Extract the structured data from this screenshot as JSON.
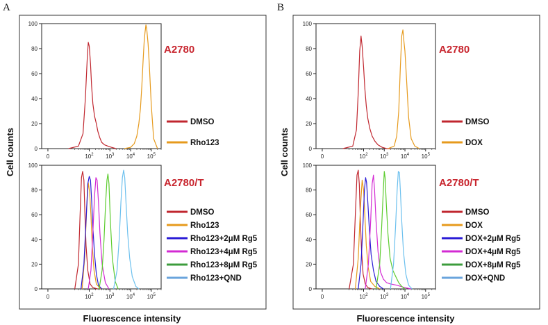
{
  "figure_panels": [
    {
      "letter": "A",
      "ylabel": "Cell counts",
      "xlabel": "Fluorescence intensity"
    },
    {
      "letter": "B",
      "ylabel": "Cell counts",
      "xlabel": "Fluorescence intensity"
    }
  ],
  "colors": {
    "DMSO": "#c0262e",
    "dye": "#e69a1c",
    "dye_2uM": "#2a1bd6",
    "dye_4uM": "#d32ad3",
    "dye_8uM": "#5ccc2e",
    "dye_QND": "#6cc0ee",
    "legend_8uM": "#3c9c3c",
    "legend_QND": "#6aa4dc",
    "title": "#c8262f"
  },
  "chart_data": [
    {
      "type": "line",
      "panel": "A",
      "title": "A2780",
      "xscale": "log",
      "xlim": [
        0.5,
        300000
      ],
      "ylim": [
        0,
        100
      ],
      "yticks": [
        0,
        20,
        40,
        60,
        80,
        100
      ],
      "xticks": [
        "0",
        "10^2",
        "10^3",
        "10^4",
        "10^5"
      ],
      "series": [
        {
          "name": "DMSO",
          "color_key": "DMSO",
          "x": [
            10,
            30,
            50,
            65,
            80,
            90,
            100,
            115,
            130,
            150,
            180,
            220,
            260,
            320,
            400,
            550,
            800,
            1200,
            2000
          ],
          "y": [
            0,
            2,
            12,
            40,
            72,
            85,
            82,
            68,
            50,
            36,
            26,
            20,
            14,
            9,
            5,
            3,
            2,
            1,
            0
          ]
        },
        {
          "name": "Rho123",
          "color_key": "dye",
          "x": [
            5000,
            10000,
            15000,
            20000,
            25000,
            30000,
            35000,
            40000,
            45000,
            50000,
            55000,
            60000,
            70000,
            80000,
            100000,
            130000,
            200000
          ],
          "y": [
            0,
            1,
            4,
            10,
            20,
            32,
            50,
            70,
            85,
            93,
            99,
            96,
            84,
            68,
            35,
            8,
            0
          ]
        }
      ]
    },
    {
      "type": "line",
      "panel": "A",
      "title": "A2780/T",
      "xscale": "log",
      "xlim": [
        0.5,
        300000
      ],
      "ylim": [
        0,
        100
      ],
      "yticks": [
        0,
        20,
        40,
        60,
        80,
        100
      ],
      "xticks": [
        "0",
        "10^2",
        "10^3",
        "10^4",
        "10^5"
      ],
      "series": [
        {
          "name": "DMSO",
          "color_key": "DMSO",
          "x": [
            20,
            30,
            36,
            42,
            48,
            55,
            62,
            70,
            85,
            110,
            150,
            250
          ],
          "y": [
            0,
            20,
            60,
            90,
            95,
            88,
            60,
            35,
            15,
            4,
            1,
            0
          ]
        },
        {
          "name": "Rho123",
          "color_key": "dye",
          "x": [
            45,
            60,
            75,
            90,
            105,
            120,
            140,
            170,
            220,
            350
          ],
          "y": [
            0,
            25,
            65,
            86,
            78,
            60,
            35,
            15,
            4,
            0
          ]
        },
        {
          "name": "Rho123+2μM Rg5",
          "color_key": "dye_2uM",
          "x": [
            40,
            55,
            70,
            85,
            100,
            115,
            130,
            150,
            180,
            220,
            280,
            400
          ],
          "y": [
            0,
            20,
            55,
            85,
            91,
            88,
            72,
            50,
            28,
            12,
            3,
            0
          ]
        },
        {
          "name": "Rho123+4μM Rg5",
          "color_key": "dye_4uM",
          "x": [
            90,
            120,
            150,
            180,
            210,
            240,
            280,
            330,
            420,
            600,
            900
          ],
          "y": [
            0,
            15,
            45,
            75,
            90,
            88,
            70,
            45,
            20,
            5,
            0
          ]
        },
        {
          "name": "Rho123+8μM Rg5",
          "color_key": "dye_8uM",
          "x": [
            300,
            420,
            520,
            620,
            720,
            800,
            900,
            1050,
            1300,
            1800,
            2500
          ],
          "y": [
            0,
            15,
            40,
            70,
            88,
            93,
            85,
            55,
            25,
            6,
            0
          ]
        },
        {
          "name": "Rho123+QND",
          "color_key": "dye_QND",
          "x": [
            1500,
            2200,
            2800,
            3400,
            4000,
            4600,
            5200,
            6000,
            7200,
            9000,
            12000,
            18000,
            25000
          ],
          "y": [
            0,
            15,
            40,
            70,
            90,
            96,
            90,
            70,
            45,
            25,
            10,
            2,
            0
          ]
        }
      ]
    },
    {
      "type": "line",
      "panel": "B",
      "title": "A2780",
      "xscale": "log",
      "xlim": [
        0.5,
        300000
      ],
      "ylim": [
        0,
        100
      ],
      "yticks": [
        0,
        20,
        40,
        60,
        80,
        100
      ],
      "xticks": [
        "0",
        "10^2",
        "10^3",
        "10^4",
        "10^5"
      ],
      "series": [
        {
          "name": "DMSO",
          "color_key": "DMSO",
          "x": [
            10,
            30,
            45,
            55,
            65,
            75,
            85,
            100,
            115,
            135,
            160,
            200,
            260,
            350,
            500,
            800,
            1300,
            2000
          ],
          "y": [
            0,
            2,
            15,
            45,
            78,
            90,
            82,
            65,
            48,
            34,
            24,
            16,
            10,
            6,
            3,
            1,
            0,
            0
          ]
        },
        {
          "name": "DOX",
          "color_key": "dye",
          "x": [
            1500,
            3000,
            4000,
            5000,
            6000,
            7000,
            8000,
            9000,
            10000,
            12000,
            15000,
            20000,
            30000,
            50000
          ],
          "y": [
            0,
            2,
            10,
            30,
            65,
            90,
            95,
            85,
            78,
            55,
            25,
            8,
            2,
            0
          ]
        }
      ]
    },
    {
      "type": "line",
      "panel": "B",
      "title": "A2780/T",
      "xscale": "log",
      "xlim": [
        0.5,
        300000
      ],
      "ylim": [
        0,
        100
      ],
      "yticks": [
        0,
        20,
        40,
        60,
        80,
        100
      ],
      "xticks": [
        "0",
        "10^2",
        "10^3",
        "10^4",
        "10^5"
      ],
      "series": [
        {
          "name": "DMSO",
          "color_key": "DMSO",
          "x": [
            20,
            32,
            40,
            48,
            55,
            62,
            70,
            80,
            95,
            120,
            160,
            250
          ],
          "y": [
            0,
            20,
            60,
            92,
            96,
            85,
            55,
            30,
            12,
            4,
            1,
            0
          ]
        },
        {
          "name": "DOX",
          "color_key": "dye",
          "x": [
            40,
            55,
            70,
            85,
            100,
            115,
            135,
            165,
            220,
            350,
            600
          ],
          "y": [
            0,
            25,
            65,
            88,
            80,
            60,
            35,
            18,
            6,
            2,
            0
          ]
        },
        {
          "name": "DOX+2μM Rg5",
          "color_key": "dye_2uM",
          "x": [
            55,
            75,
            95,
            110,
            125,
            140,
            160,
            190,
            230,
            300,
            400,
            600,
            900
          ],
          "y": [
            0,
            20,
            55,
            80,
            90,
            86,
            70,
            48,
            28,
            15,
            6,
            2,
            0
          ]
        },
        {
          "name": "DOX+4μM Rg5",
          "color_key": "dye_4uM",
          "x": [
            120,
            170,
            220,
            260,
            300,
            340,
            400,
            500,
            650,
            900,
            1300,
            2000,
            4000,
            10000,
            20000
          ],
          "y": [
            0,
            20,
            55,
            85,
            92,
            80,
            55,
            30,
            14,
            8,
            5,
            4,
            3,
            1,
            0
          ]
        },
        {
          "name": "DOX+8μM Rg5",
          "color_key": "dye_8uM",
          "x": [
            400,
            600,
            750,
            900,
            1000,
            1100,
            1250,
            1500,
            1900,
            2600,
            3600,
            5000,
            7000,
            10000
          ],
          "y": [
            0,
            20,
            50,
            80,
            95,
            90,
            70,
            45,
            25,
            15,
            10,
            5,
            2,
            0
          ]
        },
        {
          "name": "DOX+QND",
          "color_key": "dye_QND",
          "x": [
            2000,
            2800,
            3500,
            4200,
            4800,
            5400,
            6000,
            7000,
            8500,
            11000,
            15000,
            22000
          ],
          "y": [
            0,
            20,
            50,
            80,
            95,
            94,
            80,
            55,
            30,
            12,
            3,
            0
          ]
        }
      ]
    }
  ]
}
